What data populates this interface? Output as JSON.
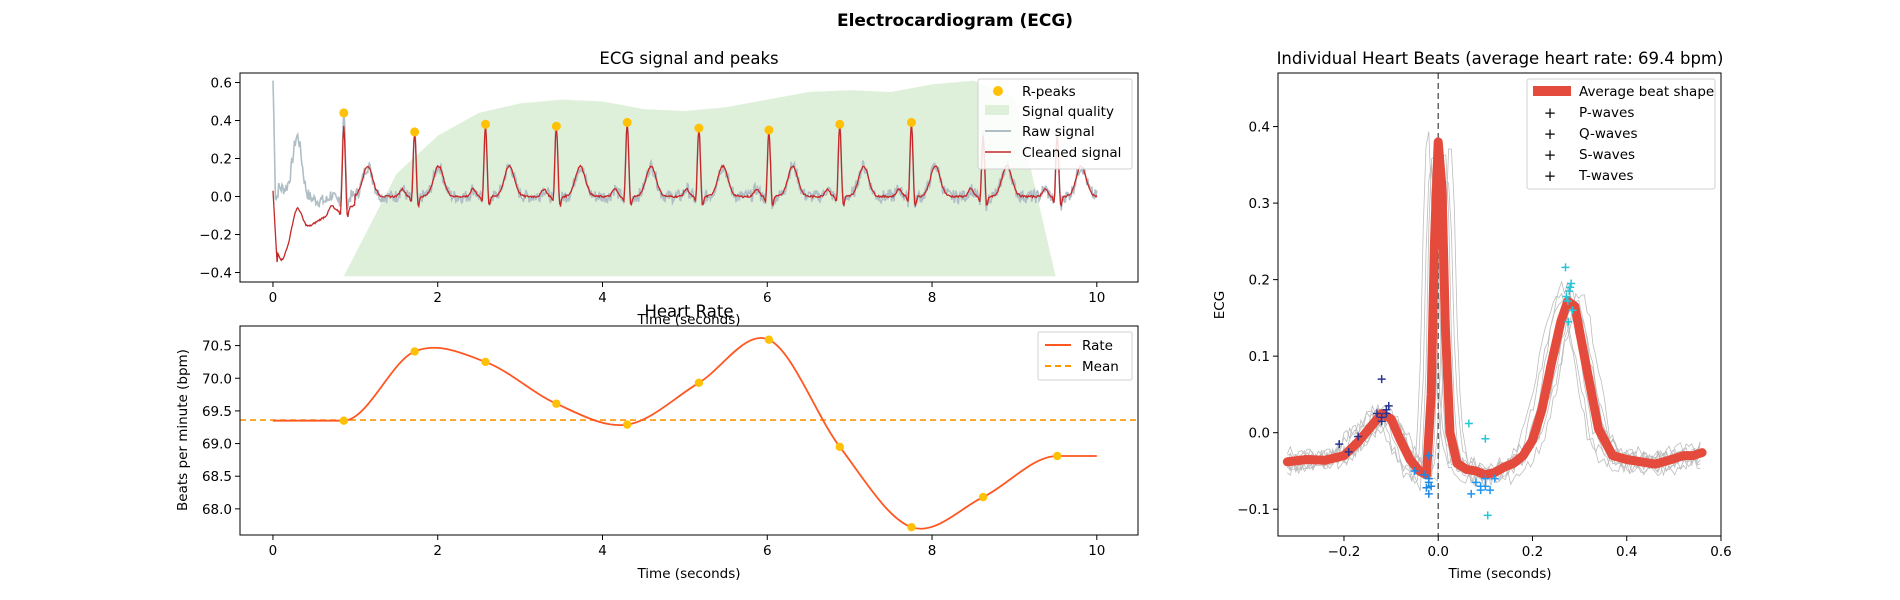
{
  "figure": {
    "title": "Electrocardiogram (ECG)"
  },
  "chart_data": [
    {
      "type": "line",
      "title": "ECG signal and peaks",
      "xlabel": "Time (seconds)",
      "ylabel": "",
      "xlim": [
        -0.4,
        10.5
      ],
      "ylim": [
        -0.45,
        0.65
      ],
      "xticks": [
        "0",
        "2",
        "4",
        "6",
        "8",
        "10"
      ],
      "yticks": [
        "−0.4",
        "−0.2",
        "0.0",
        "0.2",
        "0.4",
        "0.6"
      ],
      "legend_position": "top-right",
      "legend": [
        "R-peaks",
        "Signal quality",
        "Raw signal",
        "Cleaned signal"
      ],
      "colors": {
        "rpeaks": "#FFC107",
        "quality": "#DFF0DA",
        "raw": "#B0BEC5",
        "cleaned": "#C62828"
      },
      "r_peaks": {
        "x": [
          0.86,
          1.72,
          2.58,
          3.44,
          4.3,
          5.17,
          6.02,
          6.88,
          7.75
        ],
        "y": [
          0.44,
          0.34,
          0.38,
          0.37,
          0.39,
          0.36,
          0.35,
          0.38,
          0.39
        ]
      },
      "signal_quality": {
        "x": [
          0.86,
          1.5,
          2.0,
          2.5,
          3.0,
          3.5,
          4.0,
          4.5,
          5.0,
          5.5,
          6.0,
          6.5,
          7.0,
          7.5,
          8.0,
          8.5,
          9.0,
          9.5
        ],
        "y": [
          -0.42,
          0.12,
          0.32,
          0.44,
          0.49,
          0.51,
          0.5,
          0.46,
          0.45,
          0.47,
          0.51,
          0.55,
          0.56,
          0.55,
          0.59,
          0.61,
          0.52,
          -0.42
        ]
      },
      "raw_signal_outlier": {
        "x": 0.0,
        "y": 0.61
      }
    },
    {
      "type": "line",
      "title": "Heart Rate",
      "xlabel": "Time (seconds)",
      "ylabel": "Beats per minute (bpm)",
      "xlim": [
        -0.4,
        10.5
      ],
      "ylim": [
        67.6,
        70.8
      ],
      "xticks": [
        "0",
        "2",
        "4",
        "6",
        "8",
        "10"
      ],
      "yticks": [
        "68.0",
        "68.5",
        "69.0",
        "69.5",
        "70.0",
        "70.5"
      ],
      "legend_position": "top-right",
      "legend": [
        "Rate",
        "Mean"
      ],
      "colors": {
        "rate": "#FF5722",
        "mean": "#FF9800",
        "points": "#FFC107"
      },
      "x": [
        0.86,
        1.72,
        2.58,
        3.44,
        4.3,
        5.17,
        6.02,
        6.88,
        7.75,
        8.62,
        9.52
      ],
      "y": [
        69.35,
        70.41,
        70.25,
        69.61,
        69.29,
        69.93,
        70.59,
        68.95,
        67.72,
        68.18,
        68.81
      ],
      "mean": 69.36,
      "series": [
        {
          "name": "Rate"
        },
        {
          "name": "Mean"
        }
      ]
    },
    {
      "type": "line",
      "title": "Individual Heart Beats (average heart rate: 69.4 bpm)",
      "xlabel": "Time (seconds)",
      "ylabel": "ECG",
      "xlim": [
        -0.34,
        0.6
      ],
      "ylim": [
        -0.135,
        0.47
      ],
      "xticks": [
        "−0.2",
        "0.0",
        "0.2",
        "0.4",
        "0.6"
      ],
      "yticks": [
        "−0.1",
        "0.0",
        "0.1",
        "0.2",
        "0.3",
        "0.4"
      ],
      "legend_position": "top-right",
      "legend": [
        "Average beat shape",
        "P-waves",
        "Q-waves",
        "S-waves",
        "T-waves"
      ],
      "colors": {
        "average": "#E54B3C",
        "individual": "#BDBDBD",
        "p": "#283593",
        "q": "#1E88E5",
        "s": "#2196F3",
        "t": "#26C6DA",
        "vline": "#666666"
      },
      "average_beat": {
        "x": [
          -0.32,
          -0.28,
          -0.24,
          -0.2,
          -0.17,
          -0.14,
          -0.12,
          -0.1,
          -0.08,
          -0.06,
          -0.04,
          -0.025,
          -0.015,
          -0.008,
          0.0,
          0.008,
          0.015,
          0.025,
          0.04,
          0.06,
          0.08,
          0.1,
          0.12,
          0.14,
          0.16,
          0.18,
          0.2,
          0.22,
          0.24,
          0.26,
          0.275,
          0.29,
          0.31,
          0.34,
          0.37,
          0.4,
          0.43,
          0.46,
          0.49,
          0.52,
          0.54,
          0.56
        ],
        "y": [
          -0.038,
          -0.035,
          -0.036,
          -0.03,
          -0.012,
          0.01,
          0.025,
          0.018,
          -0.01,
          -0.035,
          -0.05,
          -0.055,
          0.05,
          0.25,
          0.38,
          0.32,
          0.14,
          0.0,
          -0.04,
          -0.048,
          -0.05,
          -0.055,
          -0.052,
          -0.045,
          -0.04,
          -0.03,
          -0.01,
          0.03,
          0.09,
          0.145,
          0.172,
          0.165,
          0.1,
          0.005,
          -0.03,
          -0.035,
          -0.038,
          -0.041,
          -0.036,
          -0.03,
          -0.03,
          -0.026
        ]
      },
      "p_waves": {
        "x": [
          -0.21,
          -0.19,
          -0.17,
          -0.13,
          -0.12,
          -0.12,
          -0.11,
          -0.11,
          -0.105,
          -0.12
        ],
        "y": [
          -0.015,
          -0.025,
          -0.005,
          0.025,
          0.02,
          0.015,
          0.03,
          0.025,
          0.035,
          0.07
        ]
      },
      "q_waves": {
        "x": [
          -0.05,
          -0.03,
          -0.02,
          -0.02,
          -0.015,
          -0.025,
          -0.02,
          -0.02
        ],
        "y": [
          -0.05,
          -0.055,
          -0.03,
          -0.06,
          -0.07,
          -0.072,
          -0.08,
          -0.065
        ]
      },
      "s_waves": {
        "x": [
          0.07,
          0.08,
          0.09,
          0.09,
          0.1,
          0.1,
          0.11,
          0.12
        ],
        "y": [
          -0.08,
          -0.065,
          -0.07,
          -0.075,
          -0.06,
          -0.07,
          -0.075,
          -0.06
        ]
      },
      "t_waves": {
        "x": [
          0.065,
          0.1,
          0.105,
          0.27,
          0.272,
          0.275,
          0.278,
          0.28,
          0.282,
          0.285,
          0.276
        ],
        "y": [
          0.012,
          -0.008,
          -0.108,
          0.216,
          0.178,
          0.172,
          0.185,
          0.19,
          0.195,
          0.16,
          0.145
        ]
      }
    }
  ]
}
